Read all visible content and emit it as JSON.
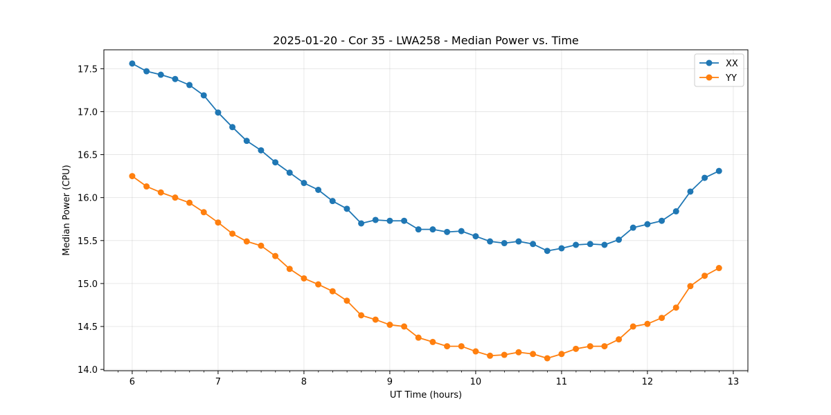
{
  "chart_data": {
    "type": "line",
    "title": "2025-01-20 - Cor 35 - LWA258 - Median Power vs. Time",
    "xlabel": "UT Time (hours)",
    "ylabel": "Median Power (CPU)",
    "xlim": [
      5.67,
      13.17
    ],
    "ylim": [
      13.985,
      17.72
    ],
    "xticks": [
      6,
      7,
      8,
      9,
      10,
      11,
      12,
      13
    ],
    "xtick_labels": [
      "6",
      "7",
      "8",
      "9",
      "10",
      "11",
      "12",
      "13"
    ],
    "yticks": [
      14.0,
      14.5,
      15.0,
      15.5,
      16.0,
      16.5,
      17.0,
      17.5
    ],
    "ytick_labels": [
      "14.0",
      "14.5",
      "15.0",
      "15.5",
      "16.0",
      "16.5",
      "17.0",
      "17.5"
    ],
    "x_minor_step": 0.1667,
    "grid": true,
    "legend_position": "upper right",
    "x": [
      6.0,
      6.1667,
      6.3333,
      6.5,
      6.6667,
      6.8333,
      7.0,
      7.1667,
      7.3333,
      7.5,
      7.6667,
      7.8333,
      8.0,
      8.1667,
      8.3333,
      8.5,
      8.6667,
      8.8333,
      9.0,
      9.1667,
      9.3333,
      9.5,
      9.6667,
      9.8333,
      10.0,
      10.1667,
      10.3333,
      10.5,
      10.6667,
      10.8333,
      11.0,
      11.1667,
      11.3333,
      11.5,
      11.6667,
      11.8333,
      12.0,
      12.1667,
      12.3333,
      12.5,
      12.6667,
      12.8333
    ],
    "series": [
      {
        "name": "XX",
        "color": "#1f77b4",
        "values": [
          17.56,
          17.47,
          17.43,
          17.38,
          17.31,
          17.19,
          16.99,
          16.82,
          16.66,
          16.55,
          16.41,
          16.29,
          16.17,
          16.09,
          15.96,
          15.87,
          15.7,
          15.74,
          15.73,
          15.73,
          15.63,
          15.63,
          15.6,
          15.61,
          15.55,
          15.49,
          15.47,
          15.49,
          15.46,
          15.38,
          15.41,
          15.45,
          15.46,
          15.45,
          15.51,
          15.65,
          15.69,
          15.73,
          15.84,
          16.07,
          16.23,
          16.31
        ]
      },
      {
        "name": "YY",
        "color": "#ff7f0e",
        "values": [
          16.25,
          16.13,
          16.06,
          16.0,
          15.94,
          15.83,
          15.71,
          15.58,
          15.49,
          15.44,
          15.32,
          15.17,
          15.06,
          14.99,
          14.91,
          14.8,
          14.63,
          14.58,
          14.52,
          14.5,
          14.37,
          14.32,
          14.27,
          14.27,
          14.21,
          14.16,
          14.17,
          14.2,
          14.18,
          14.13,
          14.18,
          14.24,
          14.27,
          14.27,
          14.35,
          14.5,
          14.53,
          14.6,
          14.72,
          14.97,
          15.09,
          15.18
        ]
      }
    ]
  }
}
